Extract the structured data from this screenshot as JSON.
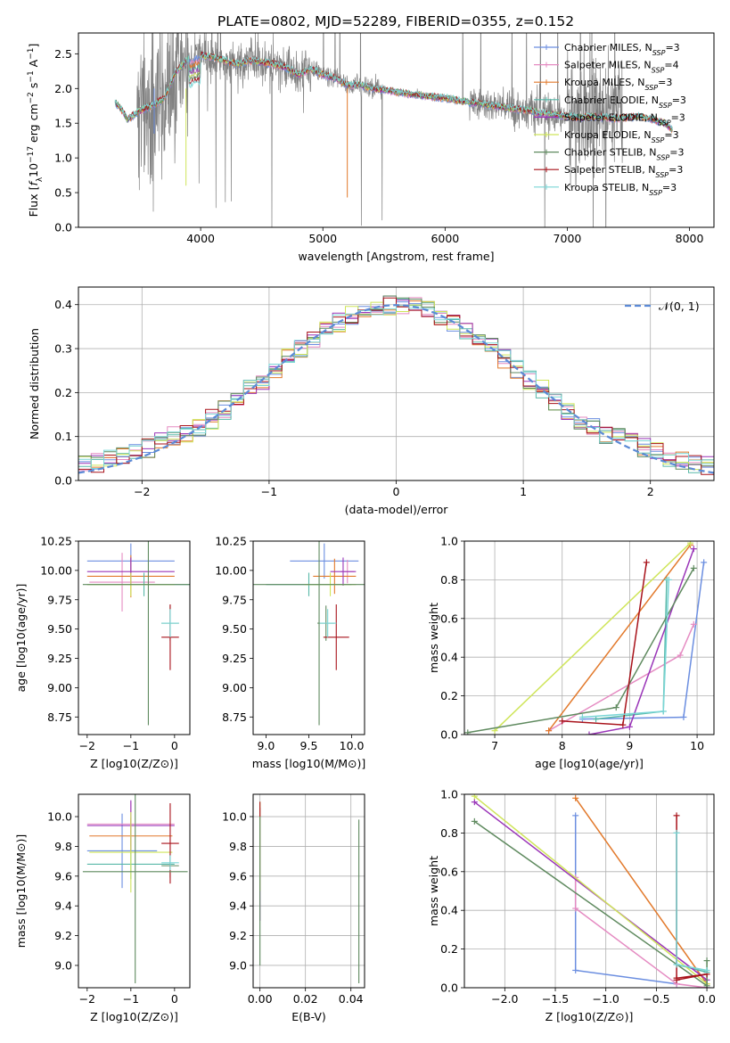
{
  "title": "PLATE=0802, MJD=52289, FIBERID=0355, z=0.152",
  "colors": {
    "Chabrier MILES": "#6b8ee0",
    "Salpeter MILES": "#e58bc2",
    "Kroupa MILES": "#e2792b",
    "Chabrier ELODIE": "#58b8a8",
    "Salpeter ELODIE": "#9a35b8",
    "Kroupa ELODIE": "#cfe55a",
    "Chabrier STELIB": "#5f8a5f",
    "Salpeter STELIB": "#a8121a",
    "Kroupa STELIB": "#7ad6d6",
    "data": "#808080"
  },
  "chart_data": [
    {
      "id": "spectrum",
      "type": "line",
      "xlabel": "wavelength [Angstrom, rest frame]",
      "ylabel_parts": [
        "Flux [",
        "f",
        "λ",
        "10",
        "−17",
        " erg cm",
        "−2",
        " s",
        "−1",
        " A",
        "−1",
        "]"
      ],
      "xlim": [
        3000,
        8200
      ],
      "ylim": [
        0,
        2.8
      ],
      "xticks": [
        4000,
        5000,
        6000,
        7000,
        8000
      ],
      "yticks": [
        0.0,
        0.5,
        1.0,
        1.5,
        2.0,
        2.5
      ],
      "xtick_labels": [
        "4000",
        "5000",
        "6000",
        "7000",
        "8000"
      ],
      "ytick_labels": [
        "0.0",
        "0.5",
        "1.0",
        "1.5",
        "2.0",
        "2.5"
      ],
      "model_continuum": {
        "x": [
          3300,
          3350,
          3400,
          3500,
          3600,
          3700,
          3800,
          3900,
          4000,
          4100,
          4200,
          4300,
          4400,
          4500,
          4600,
          4700,
          4800,
          4900,
          5000,
          5100,
          5200,
          5300,
          5400,
          5500,
          5600,
          5700,
          5800,
          5900,
          6000,
          6100,
          6200,
          6300,
          6400,
          6500,
          6600,
          6700,
          6800,
          6900,
          7000,
          7100,
          7200,
          7300,
          7400,
          7500,
          7600,
          7700,
          7800,
          7850
        ],
        "y": [
          1.8,
          1.7,
          1.55,
          1.68,
          1.75,
          1.85,
          2.25,
          2.42,
          2.48,
          2.45,
          2.4,
          2.35,
          2.4,
          2.38,
          2.35,
          2.3,
          2.2,
          2.28,
          2.2,
          2.15,
          2.05,
          2.05,
          2.0,
          1.98,
          1.95,
          1.92,
          1.9,
          1.88,
          1.86,
          1.83,
          1.8,
          1.78,
          1.75,
          1.72,
          1.7,
          1.68,
          1.64,
          1.62,
          1.6,
          1.58,
          1.6,
          1.58,
          1.57,
          1.58,
          1.6,
          1.55,
          1.5,
          1.42
        ]
      },
      "legend": [
        {
          "label": "Chabrier MILES, N",
          "sub": "SSP",
          "n": "=3"
        },
        {
          "label": "Salpeter MILES, N",
          "sub": "SSP",
          "n": "=4"
        },
        {
          "label": "Kroupa MILES, N",
          "sub": "SSP",
          "n": "=3"
        },
        {
          "label": "Chabrier ELODIE, N",
          "sub": "SSP",
          "n": "=3"
        },
        {
          "label": "Salpeter ELODIE, N",
          "sub": "SSP",
          "n": "=3"
        },
        {
          "label": "Kroupa ELODIE, N",
          "sub": "SSP",
          "n": "=3"
        },
        {
          "label": "Chabrier STELIB, N",
          "sub": "SSP",
          "n": "=3"
        },
        {
          "label": "Salpeter STELIB, N",
          "sub": "SSP",
          "n": "=3"
        },
        {
          "label": "Kroupa STELIB, N",
          "sub": "SSP",
          "n": "=3"
        }
      ],
      "legend_position": "upper-right"
    },
    {
      "id": "residuals",
      "type": "histogram",
      "xlabel": "(data-model)/error",
      "ylabel": "Normed distribution",
      "xlim": [
        -2.5,
        2.5
      ],
      "ylim": [
        0,
        0.44
      ],
      "xticks": [
        -2,
        -1,
        0,
        1,
        2
      ],
      "yticks": [
        0.0,
        0.1,
        0.2,
        0.3,
        0.4
      ],
      "xtick_labels": [
        "−2",
        "−1",
        "0",
        "1",
        "2"
      ],
      "ytick_labels": [
        "0.0",
        "0.1",
        "0.2",
        "0.3",
        "0.4"
      ],
      "bin_width": 0.1,
      "reference_curve": {
        "label": "𝒩(0, 1)",
        "mean": 0,
        "sigma": 1,
        "style": "dashed"
      },
      "legend_position": "upper-right",
      "grid": true
    },
    {
      "id": "age-vs-Z",
      "type": "errorbar",
      "xlabel": "Z [log10(Z/Z⊙)]",
      "ylabel": "age  [log10(age/yr)]",
      "xlim": [
        -2.2,
        0.35
      ],
      "ylim": [
        8.6,
        10.25
      ],
      "xticks": [
        -2,
        -1,
        0
      ],
      "yticks": [
        8.75,
        9.0,
        9.25,
        9.5,
        9.75,
        10.0,
        10.25
      ],
      "xtick_labels": [
        "−2",
        "−1",
        "0"
      ],
      "ytick_labels": [
        "8.75",
        "9.00",
        "9.25",
        "9.50",
        "9.75",
        "10.00",
        "10.25"
      ],
      "points": [
        {
          "series": "Chabrier MILES",
          "x": -1.0,
          "xerr": 1.0,
          "y": 10.08,
          "yerr": 0.15
        },
        {
          "series": "Salpeter MILES",
          "x": -1.2,
          "xerr": 0.75,
          "y": 9.9,
          "yerr": 0.25
        },
        {
          "series": "Kroupa MILES",
          "x": -1.0,
          "xerr": 1.0,
          "y": 9.95,
          "yerr": 0.18
        },
        {
          "series": "Chabrier ELODIE",
          "x": -0.7,
          "xerr": 1.3,
          "y": 9.88,
          "yerr": 0.1
        },
        {
          "series": "Salpeter ELODIE",
          "x": -1.0,
          "xerr": 1.0,
          "y": 9.99,
          "yerr": 0.12
        },
        {
          "series": "Kroupa ELODIE",
          "x": -1.0,
          "xerr": 1.0,
          "y": 9.88,
          "yerr": 0.1
        },
        {
          "series": "Chabrier STELIB",
          "x": -0.1,
          "xerr": 0.2,
          "y": 9.55,
          "yerr": 0.15
        },
        {
          "series": "Salpeter STELIB",
          "x": -0.1,
          "xerr": 0.2,
          "y": 9.43,
          "yerr": 0.28
        },
        {
          "series": "Kroupa STELIB",
          "x": -0.1,
          "xerr": 0.2,
          "y": 9.55,
          "yerr": 0.12
        },
        {
          "series": "Chabrier STELIB",
          "x": -0.6,
          "xerr": 1.5,
          "y": 9.88,
          "yerr": 1.2
        }
      ]
    },
    {
      "id": "age-vs-mass",
      "type": "errorbar",
      "xlabel": "mass [log10(M/M⊙)]",
      "ylabel": "",
      "xlim": [
        8.85,
        10.15
      ],
      "ylim": [
        8.6,
        10.25
      ],
      "xticks": [
        9.0,
        9.5,
        10.0
      ],
      "yticks": [
        8.75,
        9.0,
        9.25,
        9.5,
        9.75,
        10.0,
        10.25
      ],
      "xtick_labels": [
        "9.0",
        "9.5",
        "10.0"
      ],
      "ytick_labels": [
        "8.75",
        "9.00",
        "9.25",
        "9.50",
        "9.75",
        "10.00",
        "10.25"
      ],
      "points": [
        {
          "series": "Chabrier MILES",
          "x": 9.68,
          "xerr": 0.4,
          "y": 10.08,
          "yerr": 0.15
        },
        {
          "series": "Salpeter MILES",
          "x": 9.95,
          "xerr": 0.08,
          "y": 9.99,
          "yerr": 0.1
        },
        {
          "series": "Kroupa MILES",
          "x": 9.8,
          "xerr": 0.25,
          "y": 9.95,
          "yerr": 0.15
        },
        {
          "series": "Chabrier ELODIE",
          "x": 9.5,
          "xerr": 0.5,
          "y": 9.88,
          "yerr": 0.1
        },
        {
          "series": "Salpeter ELODIE",
          "x": 9.9,
          "xerr": 0.15,
          "y": 9.99,
          "yerr": 0.12
        },
        {
          "series": "Kroupa ELODIE",
          "x": 9.75,
          "xerr": 0.3,
          "y": 9.88,
          "yerr": 0.1
        },
        {
          "series": "Chabrier STELIB",
          "x": 9.7,
          "xerr": 0.1,
          "y": 9.55,
          "yerr": 0.15
        },
        {
          "series": "Salpeter STELIB",
          "x": 9.82,
          "xerr": 0.15,
          "y": 9.43,
          "yerr": 0.28
        },
        {
          "series": "Kroupa STELIB",
          "x": 9.72,
          "xerr": 0.1,
          "y": 9.55,
          "yerr": 0.12
        },
        {
          "series": "Chabrier STELIB",
          "x": 9.62,
          "xerr": 0.8,
          "y": 9.88,
          "yerr": 1.2
        }
      ]
    },
    {
      "id": "weight-vs-age",
      "type": "line",
      "xlabel": "age  [log10(age/yr)]",
      "ylabel": "mass weight",
      "xlim": [
        6.55,
        10.25
      ],
      "ylim": [
        0,
        1.0
      ],
      "xticks": [
        7,
        8,
        9,
        10
      ],
      "yticks": [
        0.0,
        0.2,
        0.4,
        0.6,
        0.8,
        1.0
      ],
      "xtick_labels": [
        "7",
        "8",
        "9",
        "10"
      ],
      "ytick_labels": [
        "0.0",
        "0.2",
        "0.4",
        "0.6",
        "0.8",
        "1.0"
      ],
      "grid": true,
      "series": [
        {
          "name": "Chabrier MILES",
          "x": [
            8.3,
            9.8,
            10.1
          ],
          "y": [
            0.08,
            0.09,
            0.89
          ]
        },
        {
          "name": "Salpeter MILES",
          "x": [
            7.8,
            9.75,
            9.95
          ],
          "y": [
            0.02,
            0.41,
            0.57
          ]
        },
        {
          "name": "Kroupa MILES",
          "x": [
            7.8,
            9.9
          ],
          "y": [
            0.02,
            0.98
          ]
        },
        {
          "name": "Chabrier ELODIE",
          "x": [
            8.5,
            9.5,
            9.55
          ],
          "y": [
            0.08,
            0.12,
            0.8
          ]
        },
        {
          "name": "Salpeter ELODIE",
          "x": [
            8.4,
            9.0,
            9.95
          ],
          "y": [
            0.0,
            0.04,
            0.96
          ]
        },
        {
          "name": "Kroupa ELODIE",
          "x": [
            7.0,
            9.9
          ],
          "y": [
            0.02,
            0.99
          ]
        },
        {
          "name": "Chabrier STELIB",
          "x": [
            6.6,
            8.8,
            9.95
          ],
          "y": [
            0.01,
            0.14,
            0.86
          ]
        },
        {
          "name": "Salpeter STELIB",
          "x": [
            8.0,
            8.9,
            9.25
          ],
          "y": [
            0.07,
            0.05,
            0.89
          ]
        },
        {
          "name": "Kroupa STELIB",
          "x": [
            8.3,
            9.5,
            9.58
          ],
          "y": [
            0.09,
            0.12,
            0.8
          ]
        }
      ]
    },
    {
      "id": "mass-vs-Z",
      "type": "errorbar",
      "xlabel": "Z [log10(Z/Z⊙)]",
      "ylabel": "mass [log10(M/M⊙)]",
      "xlim": [
        -2.2,
        0.35
      ],
      "ylim": [
        8.85,
        10.15
      ],
      "xticks": [
        -2,
        -1,
        0
      ],
      "yticks": [
        9.0,
        9.2,
        9.4,
        9.6,
        9.8,
        10.0
      ],
      "xtick_labels": [
        "−2",
        "−1",
        "0"
      ],
      "ytick_labels": [
        "9.0",
        "9.2",
        "9.4",
        "9.6",
        "9.8",
        "10.0"
      ],
      "points": [
        {
          "series": "Chabrier MILES",
          "x": -1.2,
          "xerr": 0.8,
          "y": 9.77,
          "yerr": 0.25
        },
        {
          "series": "Salpeter MILES",
          "x": -1.0,
          "xerr": 1.0,
          "y": 9.95,
          "yerr": 0.15
        },
        {
          "series": "Kroupa MILES",
          "x": -1.0,
          "xerr": 0.95,
          "y": 9.87,
          "yerr": 0.12
        },
        {
          "series": "Chabrier ELODIE",
          "x": -1.0,
          "xerr": 1.0,
          "y": 9.68,
          "yerr": 0.1
        },
        {
          "series": "Salpeter ELODIE",
          "x": -1.0,
          "xerr": 1.0,
          "y": 9.94,
          "yerr": 0.17
        },
        {
          "series": "Kroupa ELODIE",
          "x": -1.0,
          "xerr": 0.95,
          "y": 9.76,
          "yerr": 0.27
        },
        {
          "series": "Chabrier STELIB",
          "x": -0.1,
          "xerr": 0.2,
          "y": 9.67,
          "yerr": 0.08
        },
        {
          "series": "Salpeter STELIB",
          "x": -0.1,
          "xerr": 0.2,
          "y": 9.82,
          "yerr": 0.27
        },
        {
          "series": "Kroupa STELIB",
          "x": -0.1,
          "xerr": 0.2,
          "y": 9.69,
          "yerr": 0.05
        },
        {
          "series": "Chabrier STELIB",
          "x": -0.9,
          "xerr": 1.2,
          "y": 9.63,
          "yerr": 0.75
        }
      ]
    },
    {
      "id": "mass-vs-EBV",
      "type": "errorbar",
      "xlabel": "E(B-V)",
      "ylabel": "",
      "xlim": [
        -0.003,
        0.046
      ],
      "ylim": [
        8.85,
        10.15
      ],
      "xticks": [
        0.0,
        0.02,
        0.04
      ],
      "yticks": [
        9.0,
        9.2,
        9.4,
        9.6,
        9.8,
        10.0
      ],
      "xtick_labels": [
        "0.00",
        "0.02",
        "0.04"
      ],
      "ytick_labels": [
        "9.0",
        "9.2",
        "9.4",
        "9.6",
        "9.8",
        "10.0"
      ],
      "grid": true,
      "points": [
        {
          "series": "Salpeter ELODIE",
          "x": 0.0,
          "xerr": 0,
          "y": 9.68,
          "yerr": 0.38
        },
        {
          "series": "Kroupa ELODIE",
          "x": 0.0,
          "xerr": 0,
          "y": 9.8,
          "yerr": 0.3
        },
        {
          "series": "Salpeter STELIB",
          "x": 0.0,
          "xerr": 0,
          "y": 10.05,
          "yerr": 0.05
        },
        {
          "series": "Chabrier STELIB",
          "x": 0.0,
          "xerr": 0,
          "y": 9.5,
          "yerr": 0.5
        },
        {
          "series": "Chabrier STELIB",
          "x": 0.0435,
          "xerr": 0,
          "y": 9.43,
          "yerr": 0.55
        }
      ]
    },
    {
      "id": "weight-vs-Z",
      "type": "line",
      "xlabel": "Z [log10(Z/Z⊙)]",
      "ylabel": "mass weight",
      "xlim": [
        -2.4,
        0.07
      ],
      "ylim": [
        0,
        1.0
      ],
      "xticks": [
        -2.0,
        -1.5,
        -1.0,
        -0.5,
        0.0
      ],
      "yticks": [
        0.0,
        0.2,
        0.4,
        0.6,
        0.8,
        1.0
      ],
      "xtick_labels": [
        "−2.0",
        "−1.5",
        "−1.0",
        "−0.5",
        "0.0"
      ],
      "ytick_labels": [
        "0.0",
        "0.2",
        "0.4",
        "0.6",
        "0.8",
        "1.0"
      ],
      "grid": true,
      "series": [
        {
          "name": "Chabrier MILES",
          "x": [
            -1.3,
            -1.3,
            -0.3,
            -0.3
          ],
          "y": [
            0.89,
            0.09,
            0.02,
            0.02
          ]
        },
        {
          "name": "Salpeter MILES",
          "x": [
            -1.3,
            -1.3,
            -0.3,
            0.0
          ],
          "y": [
            0.57,
            0.41,
            0.02,
            0.0
          ]
        },
        {
          "name": "Kroupa MILES",
          "x": [
            -1.3,
            0.0
          ],
          "y": [
            0.98,
            0.02
          ]
        },
        {
          "name": "Chabrier ELODIE",
          "x": [
            -0.3,
            -0.3,
            0.0
          ],
          "y": [
            0.8,
            0.12,
            0.08
          ]
        },
        {
          "name": "Salpeter ELODIE",
          "x": [
            -2.3,
            0.0,
            0.0
          ],
          "y": [
            0.96,
            0.04,
            0.0
          ]
        },
        {
          "name": "Kroupa ELODIE",
          "x": [
            -2.3,
            0.0
          ],
          "y": [
            0.99,
            0.02
          ]
        },
        {
          "name": "Chabrier STELIB",
          "x": [
            -2.3,
            0.0,
            0.0
          ],
          "y": [
            0.86,
            0.01,
            0.14
          ]
        },
        {
          "name": "Salpeter STELIB",
          "x": [
            -0.3,
            -0.3,
            0.0,
            -0.3
          ],
          "y": [
            0.89,
            0.05,
            0.07,
            0.04
          ]
        },
        {
          "name": "Kroupa STELIB",
          "x": [
            -0.3,
            -0.3,
            0.0
          ],
          "y": [
            0.8,
            0.12,
            0.09
          ]
        }
      ]
    }
  ]
}
